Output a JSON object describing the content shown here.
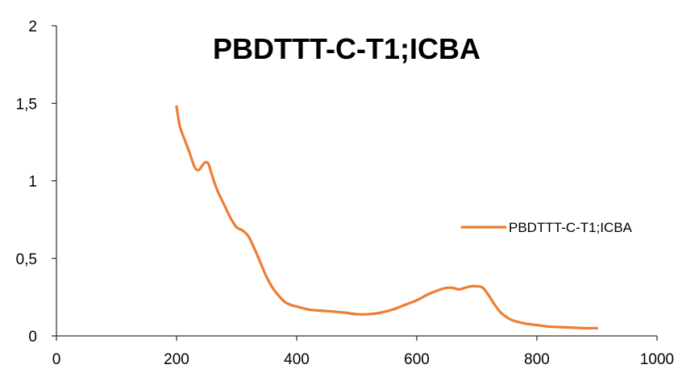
{
  "chart_data": {
    "type": "line",
    "title": "PBDTTT-C-T1;ICBA",
    "xlabel": "",
    "ylabel": "",
    "xlim": [
      0,
      1000
    ],
    "ylim": [
      0,
      2
    ],
    "x_ticks": [
      "0",
      "200",
      "400",
      "600",
      "800",
      "1000"
    ],
    "y_ticks": [
      "0",
      "0,5",
      "1",
      "1,5",
      "2"
    ],
    "grid": false,
    "legend_position": "right",
    "series": [
      {
        "name": "PBDTTT-C-T1;ICBA",
        "color": "#ED7D31",
        "x": [
          200,
          205,
          210,
          220,
          230,
          237,
          243,
          248,
          253,
          258,
          263,
          270,
          280,
          290,
          300,
          310,
          320,
          330,
          340,
          350,
          360,
          370,
          380,
          390,
          400,
          420,
          450,
          480,
          500,
          520,
          540,
          560,
          580,
          600,
          620,
          640,
          650,
          660,
          670,
          680,
          690,
          700,
          710,
          720,
          730,
          740,
          750,
          760,
          780,
          800,
          820,
          850,
          880,
          900
        ],
        "y": [
          1.48,
          1.36,
          1.3,
          1.2,
          1.09,
          1.07,
          1.1,
          1.12,
          1.11,
          1.05,
          0.99,
          0.92,
          0.84,
          0.76,
          0.7,
          0.68,
          0.64,
          0.56,
          0.47,
          0.38,
          0.31,
          0.26,
          0.22,
          0.2,
          0.19,
          0.17,
          0.16,
          0.15,
          0.14,
          0.14,
          0.15,
          0.17,
          0.2,
          0.23,
          0.27,
          0.3,
          0.31,
          0.31,
          0.3,
          0.31,
          0.32,
          0.32,
          0.31,
          0.26,
          0.2,
          0.15,
          0.12,
          0.1,
          0.08,
          0.07,
          0.06,
          0.055,
          0.05,
          0.05
        ]
      }
    ]
  }
}
